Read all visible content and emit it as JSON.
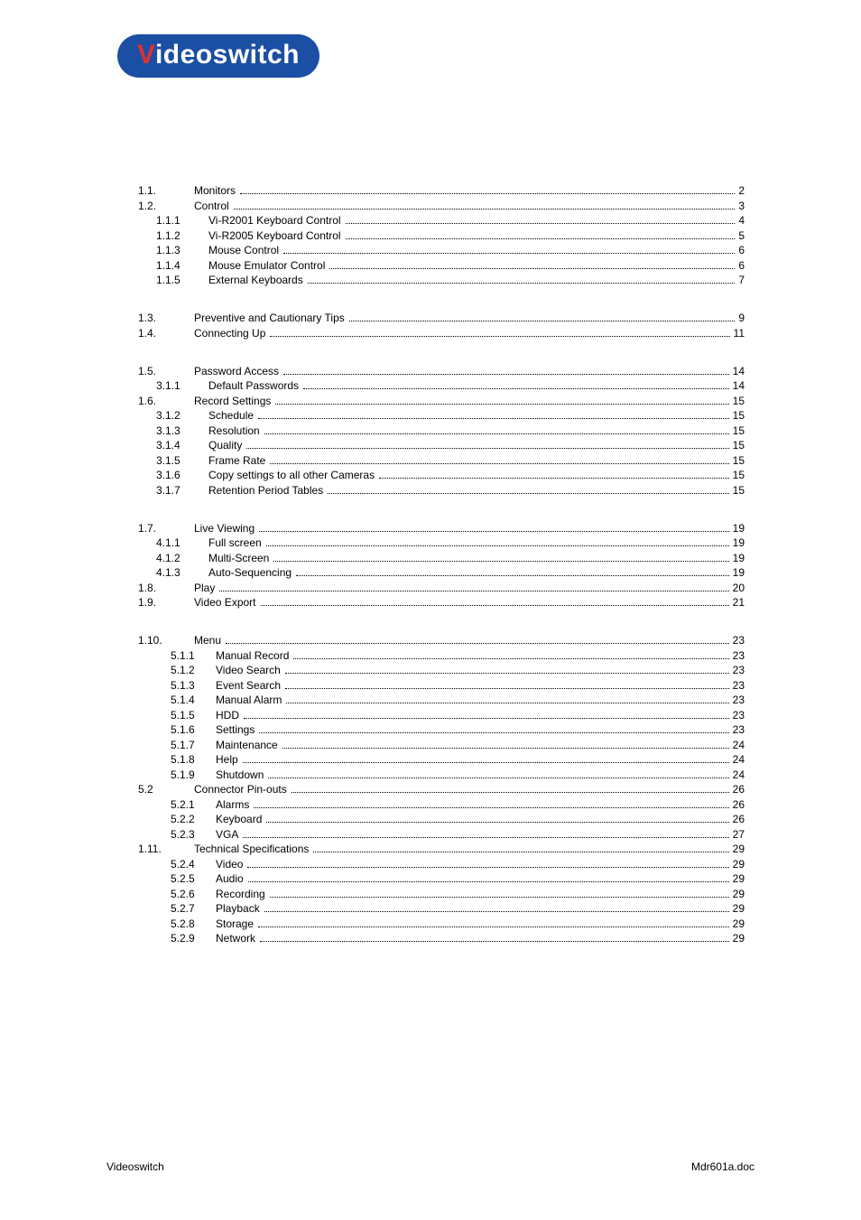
{
  "logo": {
    "first_char": "V",
    "rest": "ideoswitch"
  },
  "footer": {
    "left": "Videoswitch",
    "right": "Mdr601a.doc"
  },
  "style": {
    "page_bg": "#ffffff",
    "text_color": "#000000",
    "logo_bg": "#1b4fa3",
    "logo_v_color": "#e03030",
    "logo_rest_color": "#ffffff",
    "font_size_pt": 12,
    "dot_color": "#000000"
  },
  "toc_groups": [
    [
      {
        "num": "1.1.",
        "title": "Monitors",
        "page": "2",
        "lvl": 0
      },
      {
        "num": "1.2.",
        "title": "Control",
        "page": "3",
        "lvl": 0
      },
      {
        "num": "1.1.1",
        "title": "Vi-R2001 Keyboard Control",
        "page": "4",
        "lvl": 1
      },
      {
        "num": "1.1.2",
        "title": "Vi-R2005 Keyboard Control",
        "page": "5",
        "lvl": 1
      },
      {
        "num": "1.1.3",
        "title": "Mouse Control",
        "page": "6",
        "lvl": 1
      },
      {
        "num": "1.1.4",
        "title": "Mouse Emulator Control",
        "page": "6",
        "lvl": 1
      },
      {
        "num": "1.1.5",
        "title": "External Keyboards",
        "page": "7",
        "lvl": 1
      }
    ],
    [
      {
        "num": "1.3.",
        "title": "Preventive and Cautionary Tips",
        "page": "9",
        "lvl": 0
      },
      {
        "num": "1.4.",
        "title": "Connecting Up",
        "page": "11",
        "lvl": 0
      }
    ],
    [
      {
        "num": "1.5.",
        "title": "Password Access",
        "page": "14",
        "lvl": 0
      },
      {
        "num": "3.1.1",
        "title": "Default Passwords",
        "page": "14",
        "lvl": 1
      },
      {
        "num": "1.6.",
        "title": "Record Settings",
        "page": "15",
        "lvl": 0
      },
      {
        "num": "3.1.2",
        "title": "Schedule",
        "page": "15",
        "lvl": 1
      },
      {
        "num": "3.1.3",
        "title": "Resolution",
        "page": "15",
        "lvl": 1
      },
      {
        "num": "3.1.4",
        "title": "Quality",
        "page": "15",
        "lvl": 1
      },
      {
        "num": "3.1.5",
        "title": "Frame Rate",
        "page": "15",
        "lvl": 1
      },
      {
        "num": "3.1.6",
        "title": "Copy settings to all other Cameras",
        "page": "15",
        "lvl": 1
      },
      {
        "num": "3.1.7",
        "title": "Retention Period Tables",
        "page": "15",
        "lvl": 1
      }
    ],
    [
      {
        "num": "1.7.",
        "title": "Live Viewing",
        "page": "19",
        "lvl": 0
      },
      {
        "num": "4.1.1",
        "title": "Full screen",
        "page": "19",
        "lvl": 1
      },
      {
        "num": "4.1.2",
        "title": "Multi-Screen",
        "page": "19",
        "lvl": 1
      },
      {
        "num": "4.1.3",
        "title": "Auto-Sequencing",
        "page": "19",
        "lvl": 1
      },
      {
        "num": "1.8.",
        "title": "Play",
        "page": "20",
        "lvl": 0
      },
      {
        "num": "1.9.",
        "title": "Video Export",
        "page": "21",
        "lvl": 0
      }
    ],
    [
      {
        "num": "1.10.",
        "title": "Menu",
        "page": "23",
        "lvl": 0
      },
      {
        "num": "5.1.1",
        "title": "Manual Record",
        "page": "23",
        "lvl": 2
      },
      {
        "num": "5.1.2",
        "title": "Video Search",
        "page": "23",
        "lvl": 2
      },
      {
        "num": "5.1.3",
        "title": "Event Search",
        "page": "23",
        "lvl": 2
      },
      {
        "num": "5.1.4",
        "title": "Manual Alarm",
        "page": "23",
        "lvl": 2
      },
      {
        "num": "5.1.5",
        "title": "HDD",
        "page": "23",
        "lvl": 2
      },
      {
        "num": "5.1.6",
        "title": "Settings",
        "page": "23",
        "lvl": 2
      },
      {
        "num": "5.1.7",
        "title": "Maintenance",
        "page": "24",
        "lvl": 2
      },
      {
        "num": "5.1.8",
        "title": "Help",
        "page": "24",
        "lvl": 2
      },
      {
        "num": "5.1.9",
        "title": "Shutdown",
        "page": "24",
        "lvl": 2
      },
      {
        "num": "5.2",
        "title": "Connector Pin-outs",
        "page": "26",
        "lvl": 0
      },
      {
        "num": "5.2.1",
        "title": "Alarms",
        "page": "26",
        "lvl": 2
      },
      {
        "num": "5.2.2",
        "title": "Keyboard",
        "page": "26",
        "lvl": 2
      },
      {
        "num": "5.2.3",
        "title": "VGA",
        "page": "27",
        "lvl": 2
      },
      {
        "num": "1.11.",
        "title": "Technical Specifications",
        "page": "29",
        "lvl": 0
      },
      {
        "num": "5.2.4",
        "title": "Video",
        "page": "29",
        "lvl": 2
      },
      {
        "num": "5.2.5",
        "title": "Audio",
        "page": "29",
        "lvl": 2
      },
      {
        "num": "5.2.6",
        "title": "Recording",
        "page": "29",
        "lvl": 2
      },
      {
        "num": "5.2.7",
        "title": "Playback",
        "page": "29",
        "lvl": 2
      },
      {
        "num": "5.2.8",
        "title": "Storage",
        "page": "29",
        "lvl": 2
      },
      {
        "num": "5.2.9",
        "title": "Network",
        "page": "29",
        "lvl": 2
      }
    ]
  ]
}
